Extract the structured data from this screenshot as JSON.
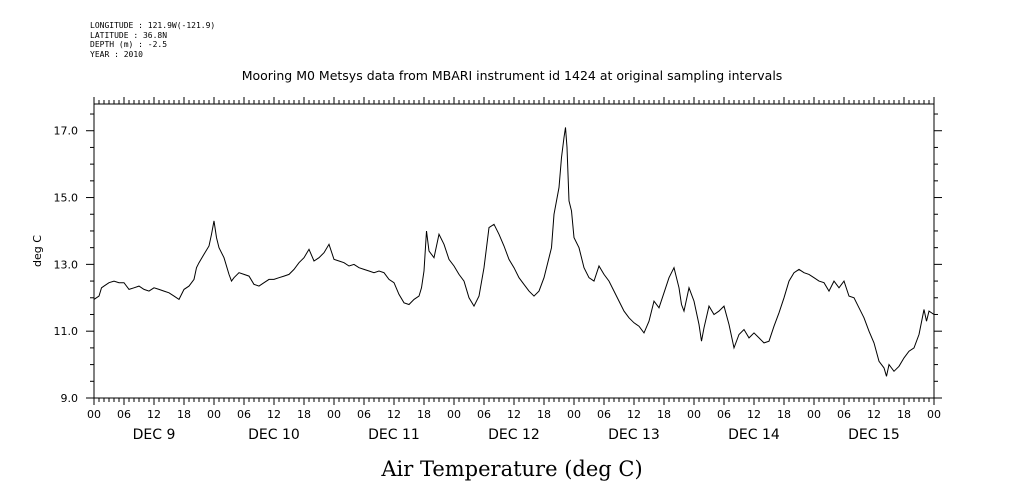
{
  "header": {
    "meta_lines": [
      "LONGITUDE : 121.9W(-121.9)",
      "LATITUDE : 36.8N",
      "DEPTH (m) : -2.5",
      "YEAR : 2010"
    ]
  },
  "chart_data": {
    "type": "line",
    "title": "Mooring M0 Metsys data from MBARI instrument id 1424 at original sampling intervals",
    "xlabel": "Air Temperature (deg C)",
    "ylabel": "deg C",
    "ylim": [
      9.0,
      17.8
    ],
    "y_ticks": [
      "9.0",
      "11.0",
      "13.0",
      "15.0",
      "17.0"
    ],
    "x_range_hours": [
      0,
      168
    ],
    "x_hour_tick_labels": [
      "00",
      "06",
      "12",
      "18",
      "00",
      "06",
      "12",
      "18",
      "00",
      "06",
      "12",
      "18",
      "00",
      "06",
      "12",
      "18",
      "00",
      "06",
      "12",
      "18",
      "00",
      "06",
      "12",
      "18",
      "00",
      "06",
      "12",
      "18",
      "00"
    ],
    "day_labels": [
      "DEC 9",
      "DEC 10",
      "DEC 11",
      "DEC 12",
      "DEC 13",
      "DEC 14",
      "DEC 15"
    ],
    "grid": false,
    "legend": "none",
    "series": [
      {
        "color": "#000000",
        "points": [
          [
            0,
            11.95
          ],
          [
            1,
            12.05
          ],
          [
            1.5,
            12.3
          ],
          [
            2,
            12.35
          ],
          [
            3,
            12.45
          ],
          [
            4,
            12.5
          ],
          [
            5,
            12.45
          ],
          [
            6,
            12.45
          ],
          [
            7,
            12.25
          ],
          [
            8,
            12.3
          ],
          [
            9,
            12.35
          ],
          [
            10,
            12.25
          ],
          [
            11,
            12.2
          ],
          [
            12,
            12.3
          ],
          [
            13,
            12.25
          ],
          [
            14,
            12.2
          ],
          [
            15,
            12.15
          ],
          [
            16,
            12.05
          ],
          [
            17,
            11.95
          ],
          [
            17.5,
            12.1
          ],
          [
            18,
            12.25
          ],
          [
            19,
            12.35
          ],
          [
            20,
            12.55
          ],
          [
            20.5,
            12.9
          ],
          [
            21,
            13.05
          ],
          [
            22,
            13.3
          ],
          [
            23,
            13.55
          ],
          [
            23.5,
            13.9
          ],
          [
            24,
            14.3
          ],
          [
            24.5,
            13.8
          ],
          [
            25,
            13.5
          ],
          [
            26,
            13.2
          ],
          [
            27,
            12.7
          ],
          [
            27.5,
            12.5
          ],
          [
            28,
            12.6
          ],
          [
            29,
            12.75
          ],
          [
            30,
            12.7
          ],
          [
            31,
            12.65
          ],
          [
            32,
            12.4
          ],
          [
            33,
            12.35
          ],
          [
            34,
            12.45
          ],
          [
            35,
            12.55
          ],
          [
            36,
            12.55
          ],
          [
            37,
            12.6
          ],
          [
            38,
            12.65
          ],
          [
            39,
            12.7
          ],
          [
            40,
            12.85
          ],
          [
            41,
            13.05
          ],
          [
            42,
            13.2
          ],
          [
            43,
            13.45
          ],
          [
            44,
            13.1
          ],
          [
            45,
            13.2
          ],
          [
            46,
            13.35
          ],
          [
            47,
            13.6
          ],
          [
            48,
            13.15
          ],
          [
            49,
            13.1
          ],
          [
            50,
            13.05
          ],
          [
            51,
            12.95
          ],
          [
            52,
            13.0
          ],
          [
            53,
            12.9
          ],
          [
            54,
            12.85
          ],
          [
            55,
            12.8
          ],
          [
            56,
            12.75
          ],
          [
            57,
            12.8
          ],
          [
            58,
            12.75
          ],
          [
            59,
            12.55
          ],
          [
            60,
            12.45
          ],
          [
            61,
            12.1
          ],
          [
            62,
            11.85
          ],
          [
            63,
            11.8
          ],
          [
            64,
            11.95
          ],
          [
            65,
            12.05
          ],
          [
            65.5,
            12.3
          ],
          [
            66,
            12.8
          ],
          [
            66.5,
            14.0
          ],
          [
            67,
            13.4
          ],
          [
            68,
            13.2
          ],
          [
            69,
            13.9
          ],
          [
            70,
            13.6
          ],
          [
            71,
            13.15
          ],
          [
            72,
            12.95
          ],
          [
            73,
            12.7
          ],
          [
            74,
            12.5
          ],
          [
            75,
            12.0
          ],
          [
            76,
            11.75
          ],
          [
            77,
            12.05
          ],
          [
            78,
            12.9
          ],
          [
            78.5,
            13.5
          ],
          [
            79,
            14.1
          ],
          [
            80,
            14.2
          ],
          [
            81,
            13.9
          ],
          [
            82,
            13.55
          ],
          [
            83,
            13.15
          ],
          [
            84,
            12.9
          ],
          [
            85,
            12.6
          ],
          [
            86,
            12.4
          ],
          [
            87,
            12.2
          ],
          [
            88,
            12.05
          ],
          [
            89,
            12.2
          ],
          [
            90,
            12.6
          ],
          [
            91,
            13.2
          ],
          [
            91.5,
            13.5
          ],
          [
            92,
            14.5
          ],
          [
            93,
            15.3
          ],
          [
            93.5,
            16.2
          ],
          [
            94,
            16.8
          ],
          [
            94.3,
            17.1
          ],
          [
            94.6,
            16.5
          ],
          [
            95,
            14.9
          ],
          [
            95.5,
            14.6
          ],
          [
            96,
            13.8
          ],
          [
            97,
            13.5
          ],
          [
            98,
            12.9
          ],
          [
            99,
            12.6
          ],
          [
            100,
            12.5
          ],
          [
            101,
            12.95
          ],
          [
            102,
            12.7
          ],
          [
            103,
            12.5
          ],
          [
            104,
            12.2
          ],
          [
            105,
            11.9
          ],
          [
            106,
            11.6
          ],
          [
            107,
            11.4
          ],
          [
            108,
            11.25
          ],
          [
            109,
            11.15
          ],
          [
            110,
            10.95
          ],
          [
            111,
            11.3
          ],
          [
            112,
            11.9
          ],
          [
            113,
            11.7
          ],
          [
            114,
            12.15
          ],
          [
            115,
            12.6
          ],
          [
            116,
            12.9
          ],
          [
            117,
            12.3
          ],
          [
            117.5,
            11.8
          ],
          [
            118,
            11.6
          ],
          [
            119,
            12.3
          ],
          [
            120,
            11.9
          ],
          [
            121,
            11.2
          ],
          [
            121.5,
            10.7
          ],
          [
            122,
            11.1
          ],
          [
            123,
            11.75
          ],
          [
            124,
            11.5
          ],
          [
            125,
            11.6
          ],
          [
            126,
            11.75
          ],
          [
            127,
            11.2
          ],
          [
            128,
            10.5
          ],
          [
            129,
            10.9
          ],
          [
            130,
            11.05
          ],
          [
            131,
            10.8
          ],
          [
            132,
            10.95
          ],
          [
            133,
            10.8
          ],
          [
            134,
            10.65
          ],
          [
            135,
            10.7
          ],
          [
            136,
            11.15
          ],
          [
            137,
            11.55
          ],
          [
            138,
            12.0
          ],
          [
            139,
            12.5
          ],
          [
            140,
            12.75
          ],
          [
            141,
            12.85
          ],
          [
            142,
            12.75
          ],
          [
            143,
            12.7
          ],
          [
            144,
            12.6
          ],
          [
            145,
            12.5
          ],
          [
            146,
            12.45
          ],
          [
            147,
            12.2
          ],
          [
            148,
            12.5
          ],
          [
            149,
            12.3
          ],
          [
            150,
            12.5
          ],
          [
            151,
            12.05
          ],
          [
            152,
            12.0
          ],
          [
            153,
            11.7
          ],
          [
            154,
            11.4
          ],
          [
            155,
            11.0
          ],
          [
            156,
            10.65
          ],
          [
            157,
            10.1
          ],
          [
            158,
            9.9
          ],
          [
            158.5,
            9.65
          ],
          [
            159,
            10.0
          ],
          [
            160,
            9.8
          ],
          [
            161,
            9.95
          ],
          [
            162,
            10.2
          ],
          [
            163,
            10.4
          ],
          [
            164,
            10.5
          ],
          [
            165,
            10.9
          ],
          [
            166,
            11.65
          ],
          [
            166.5,
            11.3
          ],
          [
            167,
            11.6
          ],
          [
            168,
            11.5
          ]
        ]
      }
    ]
  }
}
